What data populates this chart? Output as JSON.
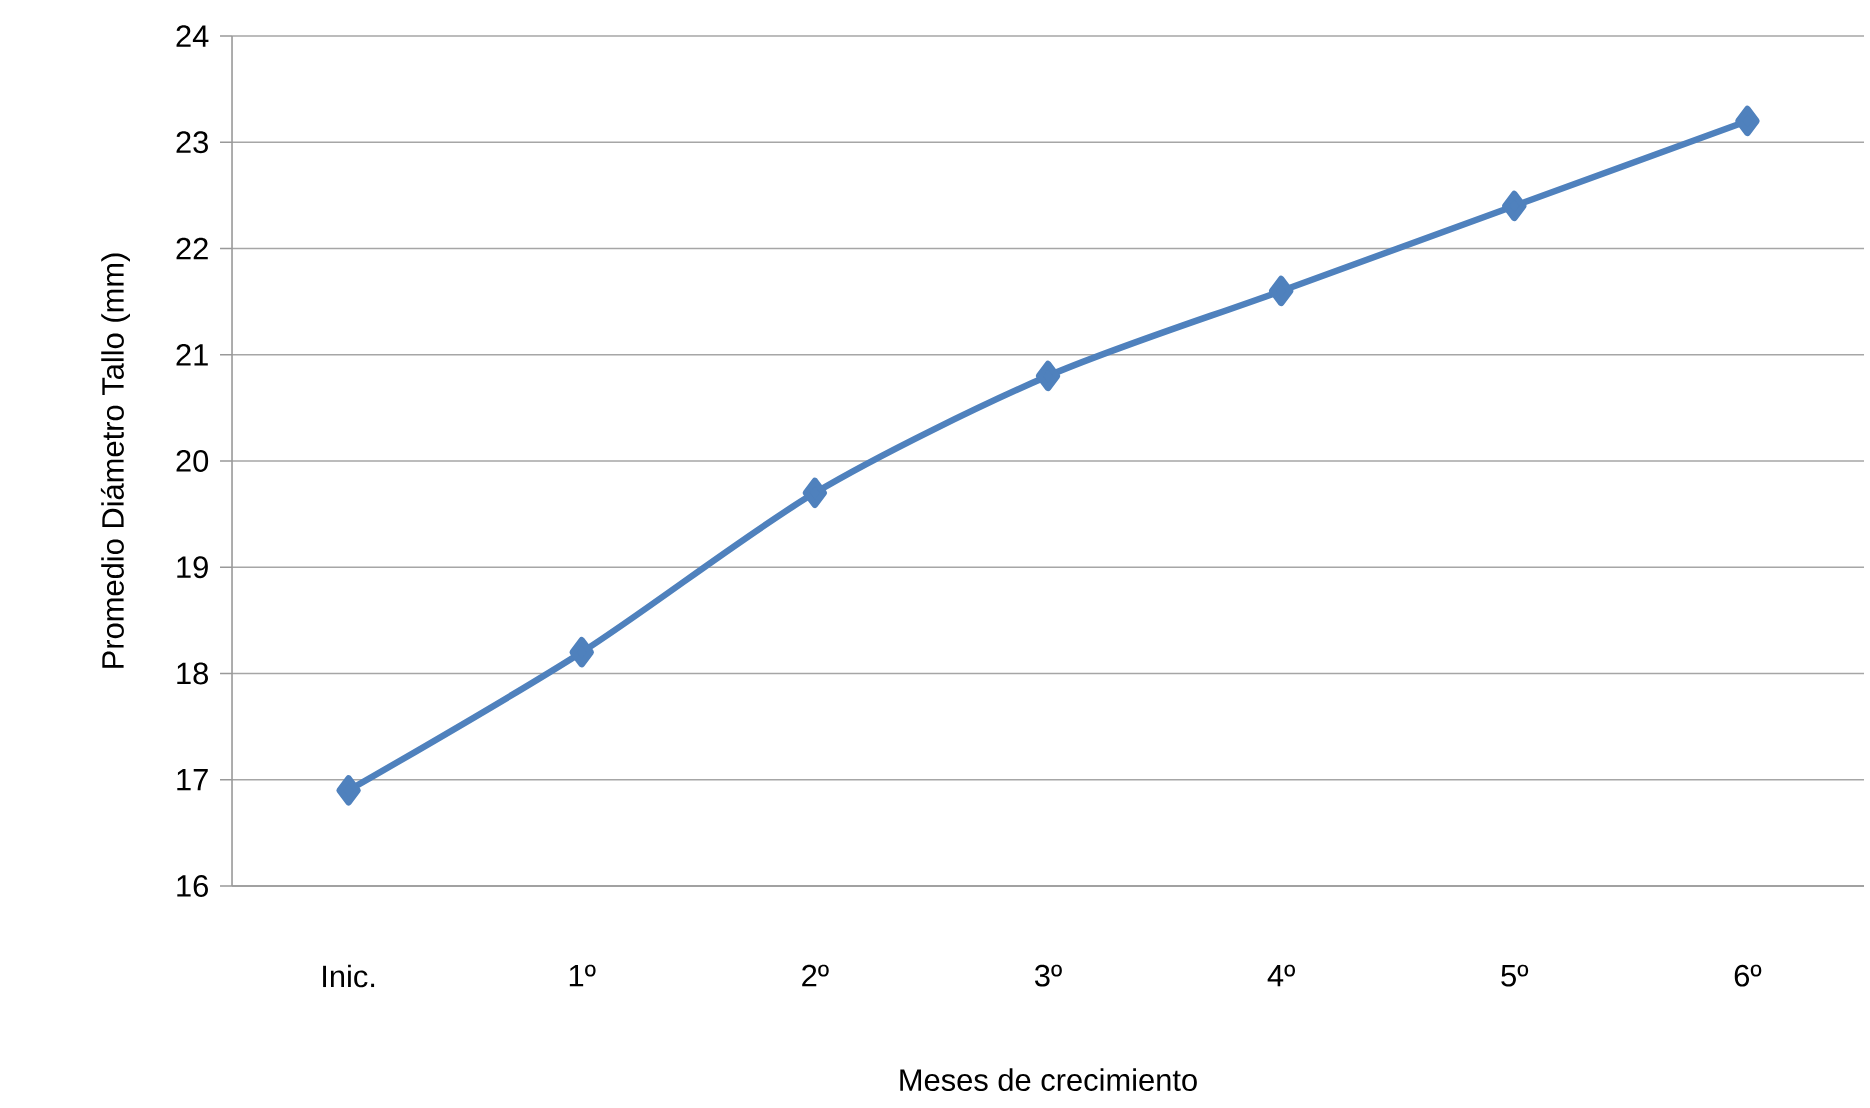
{
  "chart_data": {
    "type": "line",
    "xlabel": "Meses de crecimiento",
    "ylabel": "Promedio Diámetro Tallo (mm)",
    "categories": [
      "Inic.",
      "1º",
      "2º",
      "3º",
      "4º",
      "5º",
      "6º"
    ],
    "series": [
      {
        "color": "#4f81bd",
        "values": [
          16.9,
          18.2,
          19.7,
          20.8,
          21.6,
          22.4,
          23.2
        ]
      }
    ],
    "ylim": [
      16,
      24
    ],
    "yticks": [
      16,
      17,
      18,
      19,
      20,
      21,
      22,
      23,
      24
    ],
    "grid": "y",
    "marker": "diamond",
    "line_style": "solid"
  }
}
